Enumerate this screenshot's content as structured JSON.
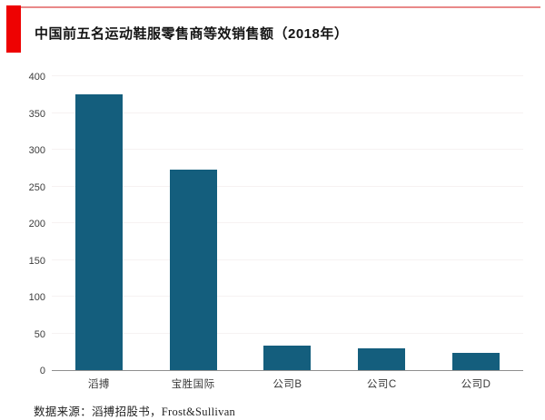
{
  "page": {
    "source_note": "数据来源：滔搏招股书，Frost&Sullivan"
  },
  "branding": {
    "accent_red": "#ee0202",
    "accent_line_red": "#e05b5b"
  },
  "chart_data": {
    "type": "bar",
    "title": "中国前五名运动鞋服零售商等效销售额（2018年）",
    "categories": [
      "滔搏",
      "宝胜国际",
      "公司B",
      "公司C",
      "公司D"
    ],
    "values": [
      375,
      273,
      33,
      30,
      23
    ],
    "xlabel": "",
    "ylabel": "",
    "ylim": [
      0,
      400
    ],
    "yticks": [
      0,
      50,
      100,
      150,
      200,
      250,
      300,
      350,
      400
    ],
    "grid": "horizontal-faint",
    "legend_position": "none",
    "bar_color": "#145E7D",
    "axis_color": "#8f8f8f",
    "gridline_color": "#f6f2f2"
  }
}
